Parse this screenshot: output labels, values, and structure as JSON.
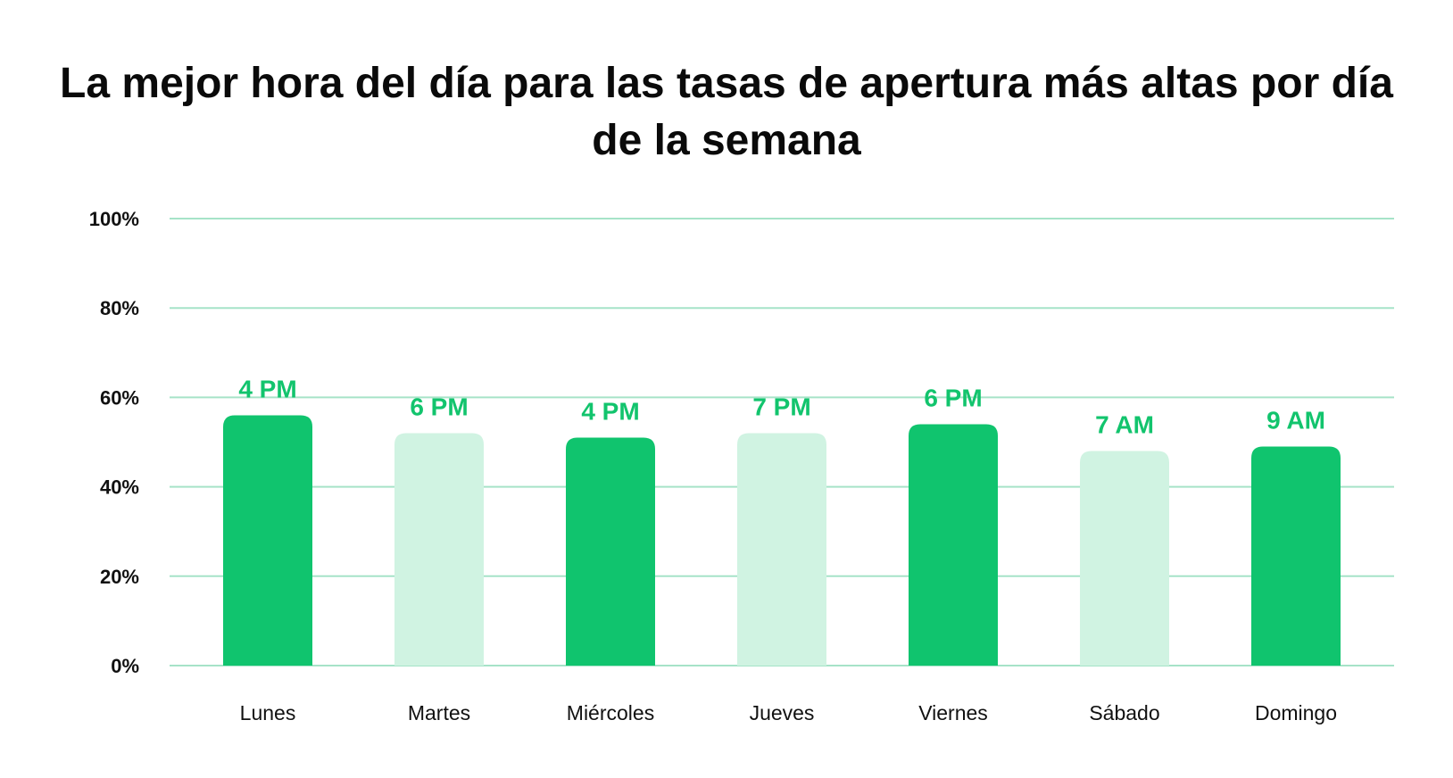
{
  "colors": {
    "bar_dark": "#10c46e",
    "bar_light": "#d0f3e2",
    "label_green": "#12c46d",
    "gridline": "#a6e3c8",
    "text": "#111111"
  },
  "chart_data": {
    "type": "bar",
    "title": "La mejor hora del día para las tasas de apertura más altas por día de la semana",
    "xlabel": "",
    "ylabel": "",
    "ylim": [
      0,
      100
    ],
    "y_ticks": [
      0,
      20,
      40,
      60,
      80,
      100
    ],
    "y_tick_labels": [
      "0%",
      "20%",
      "40%",
      "60%",
      "80%",
      "100%"
    ],
    "grid": true,
    "categories": [
      "Lunes",
      "Martes",
      "Miércoles",
      "Jueves",
      "Viernes",
      "Sábado",
      "Domingo"
    ],
    "values": [
      56,
      52,
      51,
      52,
      54,
      48,
      49
    ],
    "data_labels": [
      "4 PM",
      "6 PM",
      "4 PM",
      "7 PM",
      "6 PM",
      "7 AM",
      "9 AM"
    ],
    "bar_shades": [
      "dark",
      "light",
      "dark",
      "light",
      "dark",
      "light",
      "dark"
    ]
  }
}
